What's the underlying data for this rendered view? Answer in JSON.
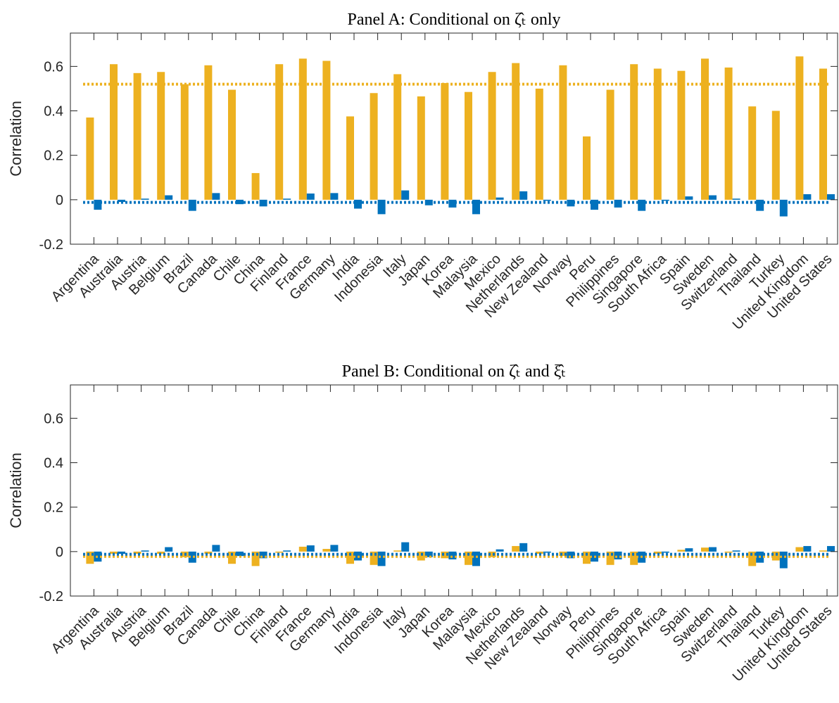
{
  "chart_data": [
    {
      "type": "bar",
      "title": "Panel A: Conditional on ζ̂ₜ only",
      "y_label": "Correlation",
      "categories": [
        "Argentina",
        "Australia",
        "Austria",
        "Belgium",
        "Brazil",
        "Canada",
        "Chile",
        "China",
        "Finland",
        "France",
        "Germany",
        "India",
        "Indonesia",
        "Italy",
        "Japan",
        "Korea",
        "Malaysia",
        "Mexico",
        "Netherlands",
        "New Zealand",
        "Norway",
        "Peru",
        "Philippines",
        "Singapore",
        "South Africa",
        "Spain",
        "Sweden",
        "Switzerland",
        "Thailand",
        "Turkey",
        "United Kingdom",
        "United States"
      ],
      "series": [
        {
          "color": "#EDB120",
          "mean": 0.52,
          "values": [
            0.37,
            0.61,
            0.57,
            0.575,
            0.52,
            0.605,
            0.495,
            0.12,
            0.61,
            0.635,
            0.625,
            0.375,
            0.48,
            0.565,
            0.465,
            0.525,
            0.485,
            0.575,
            0.615,
            0.5,
            0.605,
            0.285,
            0.495,
            0.61,
            0.59,
            0.58,
            0.635,
            0.595,
            0.42,
            0.4,
            0.645,
            0.59
          ]
        },
        {
          "color": "#0072BD",
          "mean": -0.012,
          "values": [
            -0.045,
            -0.01,
            0.005,
            0.02,
            -0.05,
            0.03,
            -0.02,
            -0.03,
            0.005,
            0.028,
            0.03,
            -0.04,
            -0.065,
            0.042,
            -0.025,
            -0.035,
            -0.065,
            0.01,
            0.038,
            -0.005,
            -0.03,
            -0.045,
            -0.035,
            -0.05,
            -0.005,
            0.015,
            0.02,
            0.005,
            -0.05,
            -0.075,
            0.025,
            0.025
          ]
        }
      ],
      "ylim": [
        -0.2,
        0.75
      ],
      "yticks": [
        -0.2,
        0,
        0.2,
        0.4,
        0.6
      ],
      "grid": false
    },
    {
      "type": "bar",
      "title": "Panel B: Conditional on ζ̂ₜ and ξ̂ₜ",
      "y_label": "Correlation",
      "categories": [
        "Argentina",
        "Australia",
        "Austria",
        "Belgium",
        "Brazil",
        "Canada",
        "Chile",
        "China",
        "Finland",
        "France",
        "Germany",
        "India",
        "Indonesia",
        "Italy",
        "Japan",
        "Korea",
        "Malaysia",
        "Mexico",
        "Netherlands",
        "New Zealand",
        "Norway",
        "Peru",
        "Philippines",
        "Singapore",
        "South Africa",
        "Spain",
        "Sweden",
        "Switzerland",
        "Thailand",
        "Turkey",
        "United Kingdom",
        "United States"
      ],
      "series": [
        {
          "color": "#EDB120",
          "mean": -0.022,
          "values": [
            -0.055,
            -0.01,
            -0.01,
            -0.01,
            -0.025,
            -0.01,
            -0.055,
            -0.065,
            -0.005,
            0.022,
            0.012,
            -0.055,
            -0.06,
            0.005,
            -0.04,
            -0.03,
            -0.06,
            -0.025,
            0.025,
            -0.01,
            -0.02,
            -0.055,
            -0.06,
            -0.06,
            -0.01,
            0.008,
            0.018,
            -0.005,
            -0.065,
            -0.04,
            0.02,
            0.005
          ]
        },
        {
          "color": "#0072BD",
          "mean": -0.012,
          "values": [
            -0.045,
            -0.01,
            0.005,
            0.02,
            -0.05,
            0.03,
            -0.02,
            -0.03,
            0.005,
            0.028,
            0.03,
            -0.04,
            -0.065,
            0.042,
            -0.025,
            -0.035,
            -0.065,
            0.01,
            0.038,
            -0.005,
            -0.03,
            -0.045,
            -0.035,
            -0.05,
            -0.005,
            0.015,
            0.02,
            0.005,
            -0.05,
            -0.075,
            0.025,
            0.025
          ]
        }
      ],
      "ylim": [
        -0.2,
        0.75
      ],
      "yticks": [
        -0.2,
        0,
        0.2,
        0.4,
        0.6
      ],
      "grid": false
    }
  ]
}
